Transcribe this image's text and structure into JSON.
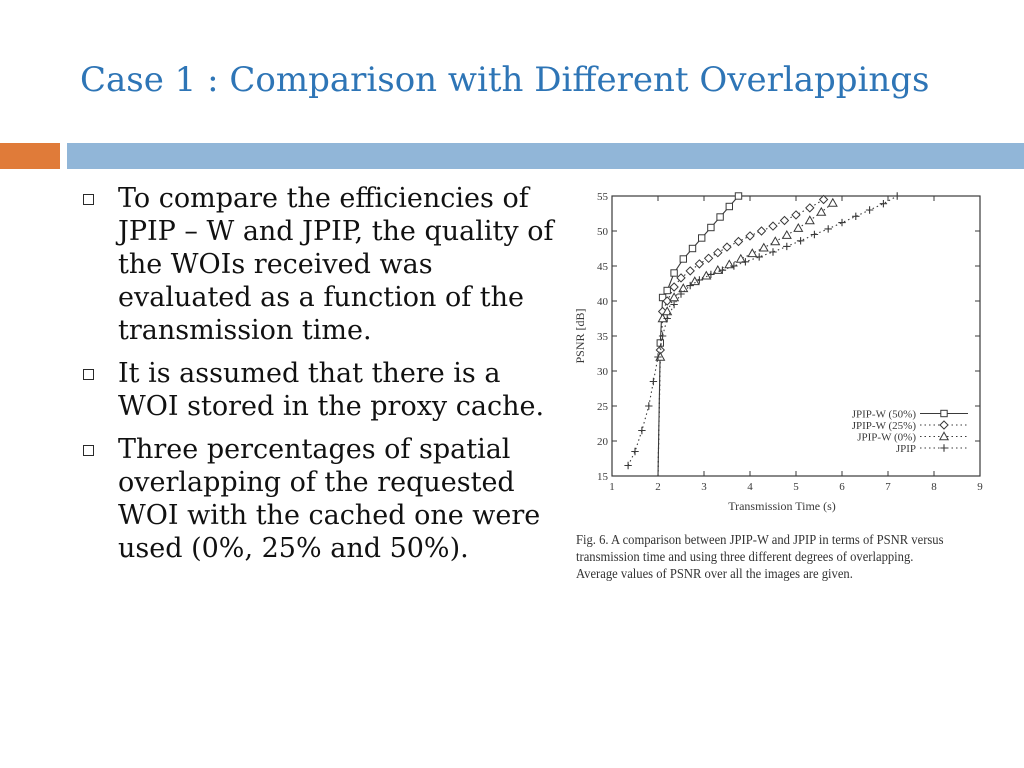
{
  "slide": {
    "title": "Case 1 : Comparison with Different Overlappings",
    "colors": {
      "title": "#2E75B6",
      "accent_orange": "#E07B39",
      "accent_blue": "#91B6D8",
      "text": "#111111"
    }
  },
  "bullets": [
    {
      "icon": "hollow-square-bullet",
      "text": "To compare the efficiencies of JPIP – W and JPIP, the quality of the WOIs received was evaluated as a function of the transmission time."
    },
    {
      "icon": "hollow-square-bullet",
      "text": "It is assumed that there is a WOI stored in the proxy cache."
    },
    {
      "icon": "hollow-square-bullet",
      "text": "Three percentages of spatial overlapping of the requested WOI with the cached one were used (0%, 25% and 50%)."
    }
  ],
  "figure": {
    "caption": "Fig. 6.   A comparison between JPIP-W and JPIP in terms of PSNR versus transmission time and using three different degrees of overlapping. Average values of PSNR over all the images are given."
  },
  "chart_data": {
    "type": "line",
    "title": "",
    "xlabel": "Transmission Time (s)",
    "ylabel": "PSNR  [dB]",
    "xlim": [
      1,
      9
    ],
    "ylim": [
      15,
      55
    ],
    "xticks": [
      1,
      2,
      3,
      4,
      5,
      6,
      7,
      8,
      9
    ],
    "yticks": [
      15,
      20,
      25,
      30,
      35,
      40,
      45,
      50,
      55
    ],
    "grid": false,
    "legend_position": "bottom-right",
    "series": [
      {
        "name": "JPIP-W (50%)",
        "marker": "square",
        "line_style": "solid",
        "x": [
          2.0,
          2.05,
          2.1,
          2.2,
          2.35,
          2.55,
          2.75,
          2.95,
          3.15,
          3.35,
          3.55,
          3.75
        ],
        "y": [
          15.0,
          34.0,
          40.5,
          41.5,
          44.0,
          46.0,
          47.5,
          49.0,
          50.5,
          52.0,
          53.5,
          55.0
        ]
      },
      {
        "name": "JPIP-W (25%)",
        "marker": "diamond",
        "line_style": "dotted",
        "x": [
          2.0,
          2.05,
          2.1,
          2.2,
          2.35,
          2.5,
          2.7,
          2.9,
          3.1,
          3.3,
          3.5,
          3.75,
          4.0,
          4.25,
          4.5,
          4.75,
          5.0,
          5.3,
          5.6
        ],
        "y": [
          15.0,
          33.0,
          38.5,
          40.0,
          42.0,
          43.3,
          44.3,
          45.3,
          46.1,
          46.9,
          47.7,
          48.5,
          49.3,
          50.0,
          50.7,
          51.5,
          52.3,
          53.3,
          54.5
        ]
      },
      {
        "name": "JPIP-W (0%)",
        "marker": "triangle",
        "line_style": "dotted",
        "x": [
          2.0,
          2.05,
          2.1,
          2.2,
          2.35,
          2.55,
          2.8,
          3.05,
          3.3,
          3.55,
          3.8,
          4.05,
          4.3,
          4.55,
          4.8,
          5.05,
          5.3,
          5.55,
          5.8
        ],
        "y": [
          15.0,
          32.0,
          37.5,
          38.5,
          40.5,
          41.8,
          42.8,
          43.6,
          44.4,
          45.2,
          46.0,
          46.8,
          47.6,
          48.5,
          49.4,
          50.4,
          51.5,
          52.7,
          54.0
        ]
      },
      {
        "name": "JPIP",
        "marker": "plus",
        "line_style": "dotted",
        "x": [
          1.35,
          1.5,
          1.65,
          1.8,
          1.9,
          2.0,
          2.1,
          2.2,
          2.35,
          2.5,
          2.7,
          2.9,
          3.15,
          3.4,
          3.65,
          3.9,
          4.2,
          4.5,
          4.8,
          5.1,
          5.4,
          5.7,
          6.0,
          6.3,
          6.6,
          6.9,
          7.2
        ],
        "y": [
          16.5,
          18.5,
          21.5,
          25.0,
          28.5,
          32.0,
          35.0,
          37.5,
          39.5,
          41.0,
          42.2,
          43.0,
          43.8,
          44.4,
          45.0,
          45.6,
          46.3,
          47.0,
          47.8,
          48.6,
          49.5,
          50.3,
          51.2,
          52.1,
          53.0,
          53.9,
          55.0
        ]
      }
    ]
  }
}
